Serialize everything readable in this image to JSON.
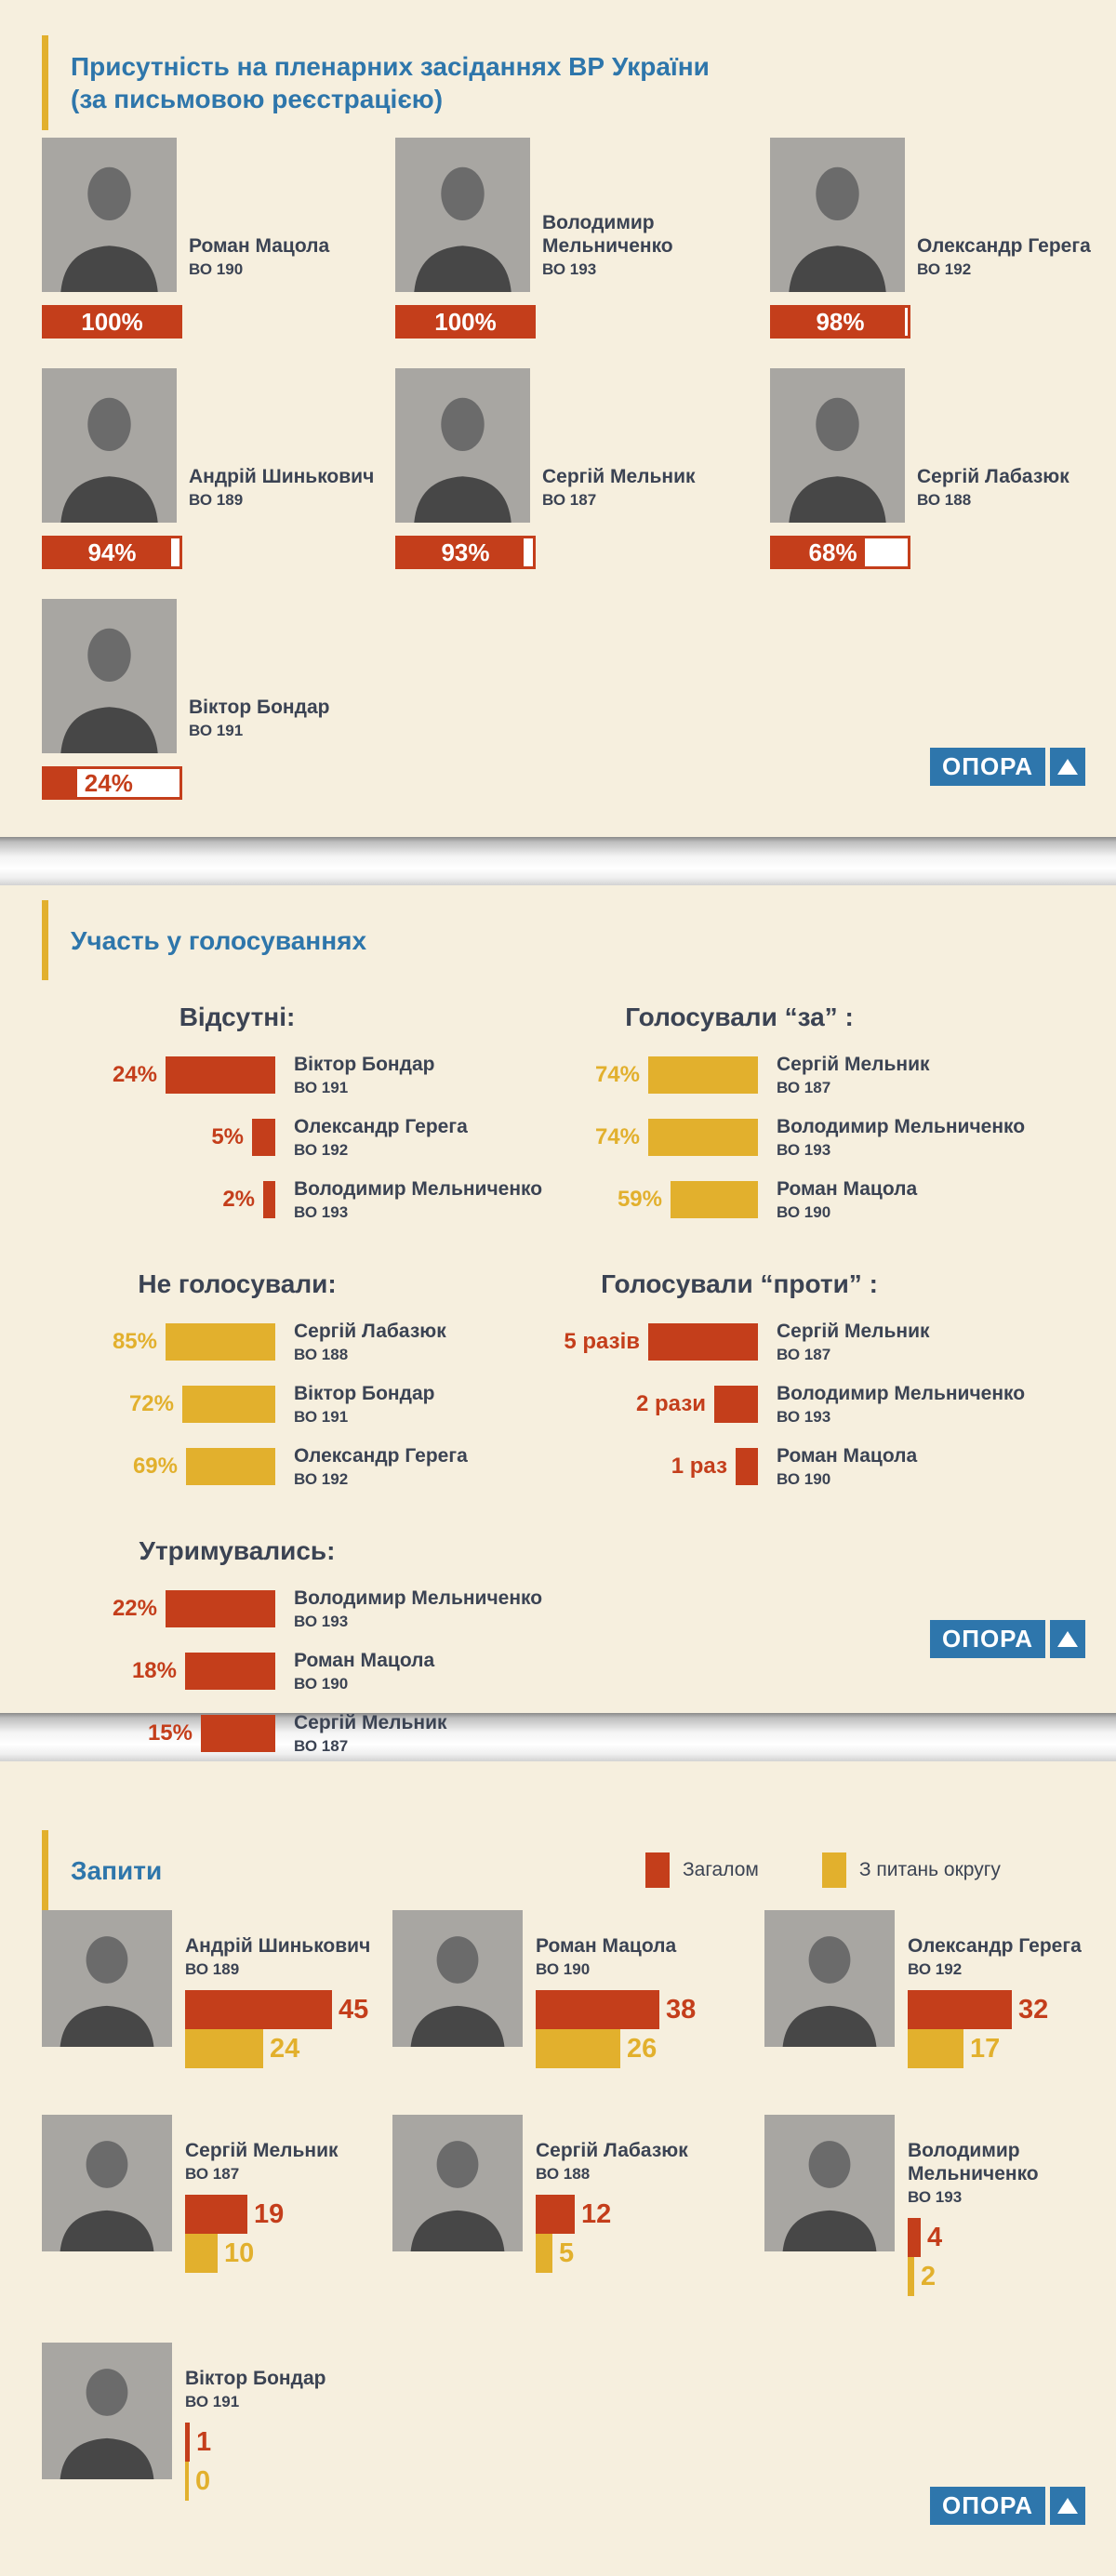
{
  "colors": {
    "red": "#c43e1b",
    "yellow": "#e2b02d",
    "navy": "#3b4353",
    "blue": "#2e76ab",
    "cream": "#f6efde",
    "logo_blue": "#2e76ac"
  },
  "logo": {
    "text": "ОПОРА"
  },
  "sections": {
    "presence": {
      "title_line1": "Присутність на пленарних засіданнях ВР України",
      "title_line2": "(за письмовою реєстрацією)"
    },
    "voting": {
      "title": "Участь у голосуваннях"
    },
    "queries": {
      "title": "Запити"
    }
  },
  "chart_data": [
    {
      "id": "presence",
      "type": "bar",
      "unit": "%",
      "title": "Присутність на пленарних засіданнях ВР України (за письмовою реєстрацією)",
      "items": [
        {
          "name": "Роман Мацола",
          "district": "ВО 190",
          "value": 100,
          "label": "100%"
        },
        {
          "name": "Володимир Мельниченко",
          "district": "ВО 193",
          "value": 100,
          "label": "100%"
        },
        {
          "name": "Олександр Герега",
          "district": "ВО 192",
          "value": 98,
          "label": "98%"
        },
        {
          "name": "Андрій Шинькович",
          "district": "ВО 189",
          "value": 94,
          "label": "94%"
        },
        {
          "name": "Сергій Мельник",
          "district": "ВО 187",
          "value": 93,
          "label": "93%"
        },
        {
          "name": "Сергій Лабазюк",
          "district": "ВО 188",
          "value": 68,
          "label": "68%"
        },
        {
          "name": "Віктор Бондар",
          "district": "ВО 191",
          "value": 24,
          "label": "24%"
        }
      ]
    },
    {
      "id": "absent",
      "type": "bar",
      "title": "Відсутні:",
      "color": "red",
      "unit": "%",
      "items": [
        {
          "label": "24%",
          "value": 24,
          "name": "Віктор Бондар",
          "district": "ВО 191"
        },
        {
          "label": "5%",
          "value": 5,
          "name": "Олександр Герега",
          "district": "ВО 192"
        },
        {
          "label": "2%",
          "value": 2,
          "name": "Володимир Мельниченко",
          "district": "ВО 193"
        }
      ]
    },
    {
      "id": "voted_for",
      "type": "bar",
      "title": "Голосували “за” :",
      "color": "yellow",
      "unit": "%",
      "items": [
        {
          "label": "74%",
          "value": 74,
          "name": "Сергій Мельник",
          "district": "ВО 187"
        },
        {
          "label": "74%",
          "value": 74,
          "name": "Володимир Мельниченко",
          "district": "ВО 193"
        },
        {
          "label": "59%",
          "value": 59,
          "name": "Роман Мацола",
          "district": "ВО 190"
        }
      ]
    },
    {
      "id": "not_voted",
      "type": "bar",
      "title": "Не голосували:",
      "color": "yellow",
      "unit": "%",
      "items": [
        {
          "label": "85%",
          "value": 85,
          "name": "Сергій Лабазюк",
          "district": "ВО 188"
        },
        {
          "label": "72%",
          "value": 72,
          "name": "Віктор Бондар",
          "district": "ВО 191"
        },
        {
          "label": "69%",
          "value": 69,
          "name": "Олександр Герега",
          "district": "ВО 192"
        }
      ]
    },
    {
      "id": "voted_against",
      "type": "bar",
      "title": "Голосували “проти” :",
      "color": "red",
      "unit": "разів",
      "items": [
        {
          "label": "5 разів",
          "value": 5,
          "name": "Сергій Мельник",
          "district": "ВО 187"
        },
        {
          "label": "2 рази",
          "value": 2,
          "name": "Володимир Мельниченко",
          "district": "ВО 193"
        },
        {
          "label": "1 раз",
          "value": 1,
          "name": "Роман Мацола",
          "district": "ВО 190"
        }
      ]
    },
    {
      "id": "abstained",
      "type": "bar",
      "title": "Утримувались:",
      "color": "red",
      "unit": "%",
      "items": [
        {
          "label": "22%",
          "value": 22,
          "name": "Володимир Мельниченко",
          "district": "ВО 193"
        },
        {
          "label": "18%",
          "value": 18,
          "name": "Роман Мацола",
          "district": "ВО 190"
        },
        {
          "label": "15%",
          "value": 15,
          "name": "Сергій Мельник",
          "district": "ВО 187"
        }
      ]
    },
    {
      "id": "queries",
      "type": "bar",
      "title": "Запити",
      "categories": [
        "Андрій Шинькович",
        "Роман Мацола",
        "Олександр Герега",
        "Сергій Мельник",
        "Сергій Лабазюк",
        "Володимир Мельниченко",
        "Віктор Бондар"
      ],
      "districts": [
        "ВО 189",
        "ВО 190",
        "ВО 192",
        "ВО 187",
        "ВО 188",
        "ВО 193",
        "ВО 191"
      ],
      "series": [
        {
          "name": "Загалом",
          "color": "red",
          "values": [
            45,
            38,
            32,
            19,
            12,
            4,
            1
          ]
        },
        {
          "name": "З питань округу",
          "color": "yellow",
          "values": [
            24,
            26,
            17,
            10,
            5,
            2,
            0
          ]
        }
      ]
    }
  ]
}
